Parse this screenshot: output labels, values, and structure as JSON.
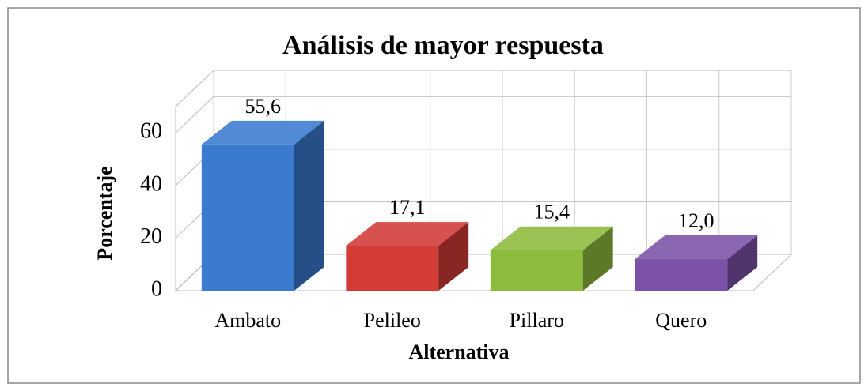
{
  "chart_data": {
    "type": "bar3d",
    "title": "Análisis de mayor respuesta",
    "x_label": "Alternativa",
    "y_label": "Porcentaje",
    "categories": [
      "Ambato",
      "Pelileo",
      "Pillaro",
      "Quero"
    ],
    "values": [
      55.6,
      17.1,
      15.4,
      12.0
    ],
    "value_labels": [
      "55,6",
      "17,1",
      "15,4",
      "12,0"
    ],
    "colors": [
      "#3a7bd0",
      "#d23b36",
      "#8dbb3c",
      "#7b52a8"
    ],
    "ylim": [
      0,
      70
    ],
    "yticks": [
      0,
      20,
      40,
      60
    ],
    "grid": true
  }
}
